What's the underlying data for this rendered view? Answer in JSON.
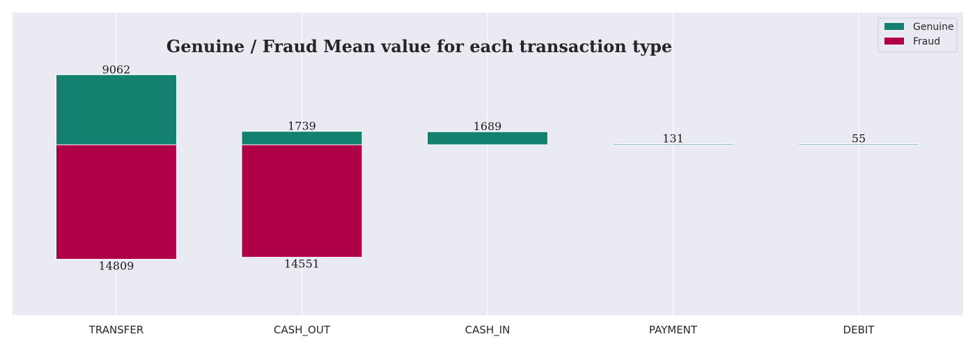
{
  "chart_data": {
    "type": "bar",
    "title": "Genuine / Fraud Mean value for each transaction type",
    "xlabel": "",
    "ylabel": "",
    "categories": [
      "TRANSFER",
      "CASH_OUT",
      "CASH_IN",
      "PAYMENT",
      "DEBIT"
    ],
    "series": [
      {
        "name": "Genuine",
        "values": [
          9062,
          1739,
          1689,
          131,
          55
        ],
        "color": "#138070",
        "direction": "up"
      },
      {
        "name": "Fraud",
        "values": [
          14809,
          14551,
          0,
          0,
          0
        ],
        "color": "#b00048",
        "direction": "down"
      }
    ],
    "data_labels": {
      "Genuine": [
        "9062",
        "1739",
        "1689",
        "131",
        "55"
      ],
      "Fraud": [
        "14809",
        "14551",
        "",
        "",
        ""
      ]
    },
    "legend_position": "top-right",
    "grid": true,
    "ylim": [
      -22500,
      17500
    ],
    "background_color": "#eaeaf2",
    "grid_color": "#ffffff"
  }
}
